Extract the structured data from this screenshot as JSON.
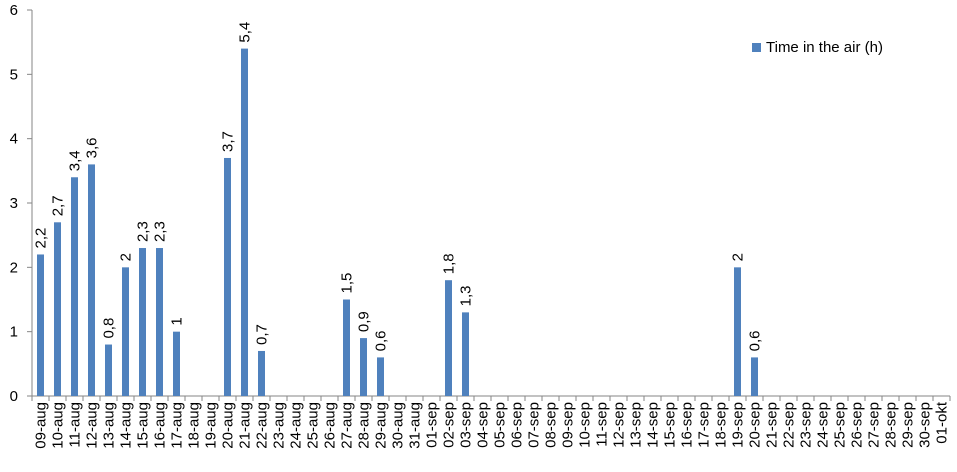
{
  "chart_data": {
    "type": "bar",
    "categories": [
      "09-aug",
      "10-aug",
      "11-aug",
      "12-aug",
      "13-aug",
      "14-aug",
      "15-aug",
      "16-aug",
      "17-aug",
      "18-aug",
      "19-aug",
      "20-aug",
      "21-aug",
      "22-aug",
      "23-aug",
      "24-aug",
      "25-aug",
      "26-aug",
      "27-aug",
      "28-aug",
      "29-aug",
      "30-aug",
      "31-aug",
      "01-sep",
      "02-sep",
      "03-sep",
      "04-sep",
      "05-sep",
      "06-sep",
      "07-sep",
      "08-sep",
      "09-sep",
      "10-sep",
      "11-sep",
      "12-sep",
      "13-sep",
      "14-sep",
      "15-sep",
      "16-sep",
      "17-sep",
      "18-sep",
      "19-sep",
      "20-sep",
      "21-sep",
      "22-sep",
      "23-sep",
      "24-sep",
      "25-sep",
      "26-sep",
      "27-sep",
      "28-sep",
      "29-sep",
      "30-sep",
      "01-okt"
    ],
    "series": [
      {
        "name": "Time in the air (h)",
        "color": "#4f81bd",
        "values": [
          2.2,
          2.7,
          3.4,
          3.6,
          0.8,
          2,
          2.3,
          2.3,
          1,
          null,
          null,
          3.7,
          5.4,
          0.7,
          null,
          null,
          null,
          null,
          1.5,
          0.9,
          0.6,
          null,
          null,
          null,
          1.8,
          1.3,
          null,
          null,
          null,
          null,
          null,
          null,
          null,
          null,
          null,
          null,
          null,
          null,
          null,
          null,
          null,
          2,
          0.6,
          null,
          null,
          null,
          null,
          null,
          null,
          null,
          null,
          null,
          null,
          null
        ],
        "value_labels": [
          "2,2",
          "2,7",
          "3,4",
          "3,6",
          "0,8",
          "2",
          "2,3",
          "2,3",
          "1",
          null,
          null,
          "3,7",
          "5,4",
          "0,7",
          null,
          null,
          null,
          null,
          "1,5",
          "0,9",
          "0,6",
          null,
          null,
          null,
          "1,8",
          "1,3",
          null,
          null,
          null,
          null,
          null,
          null,
          null,
          null,
          null,
          null,
          null,
          null,
          null,
          null,
          null,
          "2",
          "0,6",
          null,
          null,
          null,
          null,
          null,
          null,
          null,
          null,
          null,
          null,
          null
        ]
      }
    ],
    "ylim": [
      0,
      6
    ],
    "yticks": [
      0,
      1,
      2,
      3,
      4,
      5,
      6
    ],
    "grid": false,
    "legend": "top-right"
  }
}
